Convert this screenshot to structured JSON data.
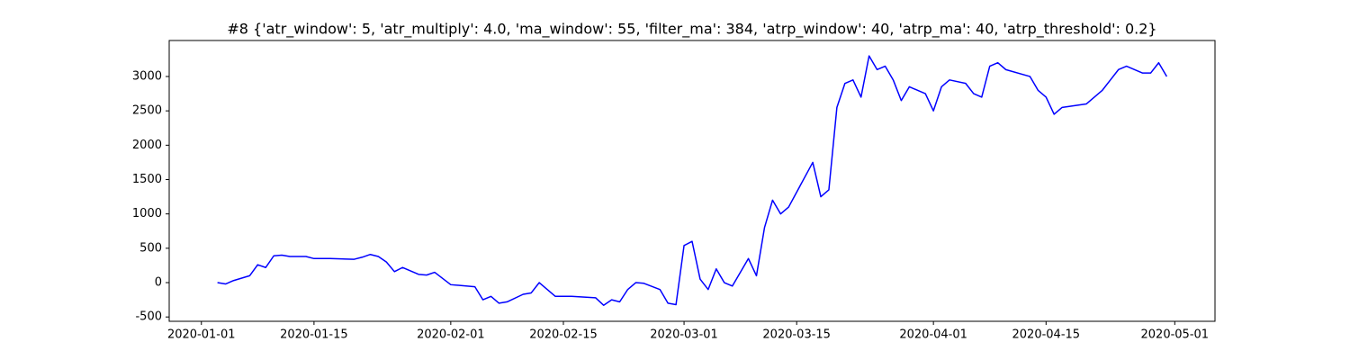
{
  "chart_data": {
    "type": "line",
    "title": "#8 {'atr_window': 5, 'atr_multiply': 4.0, 'ma_window': 55, 'filter_ma': 384, 'atrp_window': 40, 'atrp_ma': 40, 'atrp_threshold': 0.2}",
    "x": [
      "2020-01-03",
      "2020-01-04",
      "2020-01-05",
      "2020-01-07",
      "2020-01-08",
      "2020-01-09",
      "2020-01-10",
      "2020-01-11",
      "2020-01-12",
      "2020-01-14",
      "2020-01-15",
      "2020-01-17",
      "2020-01-20",
      "2020-01-21",
      "2020-01-22",
      "2020-01-23",
      "2020-01-24",
      "2020-01-25",
      "2020-01-26",
      "2020-01-28",
      "2020-01-29",
      "2020-01-30",
      "2020-01-31",
      "2020-02-01",
      "2020-02-04",
      "2020-02-05",
      "2020-02-06",
      "2020-02-07",
      "2020-02-08",
      "2020-02-10",
      "2020-02-11",
      "2020-02-12",
      "2020-02-13",
      "2020-02-14",
      "2020-02-16",
      "2020-02-19",
      "2020-02-20",
      "2020-02-21",
      "2020-02-22",
      "2020-02-23",
      "2020-02-24",
      "2020-02-25",
      "2020-02-27",
      "2020-02-28",
      "2020-02-29",
      "2020-03-01",
      "2020-03-02",
      "2020-03-03",
      "2020-03-04",
      "2020-03-05",
      "2020-03-06",
      "2020-03-07",
      "2020-03-09",
      "2020-03-10",
      "2020-03-11",
      "2020-03-12",
      "2020-03-13",
      "2020-03-14",
      "2020-03-17",
      "2020-03-18",
      "2020-03-19",
      "2020-03-20",
      "2020-03-21",
      "2020-03-22",
      "2020-03-23",
      "2020-03-24",
      "2020-03-25",
      "2020-03-26",
      "2020-03-27",
      "2020-03-28",
      "2020-03-29",
      "2020-03-31",
      "2020-04-01",
      "2020-04-02",
      "2020-04-03",
      "2020-04-05",
      "2020-04-06",
      "2020-04-07",
      "2020-04-08",
      "2020-04-09",
      "2020-04-10",
      "2020-04-13",
      "2020-04-14",
      "2020-04-15",
      "2020-04-16",
      "2020-04-17",
      "2020-04-20",
      "2020-04-21",
      "2020-04-22",
      "2020-04-23",
      "2020-04-24",
      "2020-04-25",
      "2020-04-27",
      "2020-04-28",
      "2020-04-29",
      "2020-04-30"
    ],
    "series": [
      {
        "color": "#0000ff",
        "values": [
          0,
          -20,
          30,
          100,
          260,
          220,
          390,
          400,
          380,
          380,
          350,
          350,
          340,
          370,
          410,
          380,
          300,
          160,
          220,
          120,
          110,
          150,
          60,
          -30,
          -60,
          -250,
          -200,
          -300,
          -280,
          -170,
          -150,
          0,
          -100,
          -200,
          -200,
          -220,
          -330,
          -250,
          -280,
          -100,
          0,
          -10,
          -100,
          -300,
          -320,
          540,
          600,
          50,
          -100,
          200,
          0,
          -50,
          350,
          100,
          800,
          1200,
          1000,
          1100,
          1750,
          1250,
          1350,
          2550,
          2900,
          2950,
          2700,
          3300,
          3100,
          3150,
          2950,
          2650,
          2850,
          2750,
          2500,
          2850,
          2950,
          2900,
          2750,
          2700,
          3150,
          3200,
          3100,
          3000,
          2800,
          2700,
          2450,
          2550,
          2600,
          2700,
          2800,
          2950,
          3100,
          3150,
          3050,
          3050,
          3200,
          3000
        ]
      }
    ],
    "xlim": [
      "2019-12-28",
      "2020-05-06"
    ],
    "xticks": [
      "2020-01-01",
      "2020-01-15",
      "2020-02-01",
      "2020-02-15",
      "2020-03-01",
      "2020-03-15",
      "2020-04-01",
      "2020-04-15",
      "2020-05-01"
    ],
    "ylim": [
      -563,
      3524
    ],
    "yticks": [
      -500,
      0,
      500,
      1000,
      1500,
      2000,
      2500,
      3000
    ],
    "grid": false
  }
}
